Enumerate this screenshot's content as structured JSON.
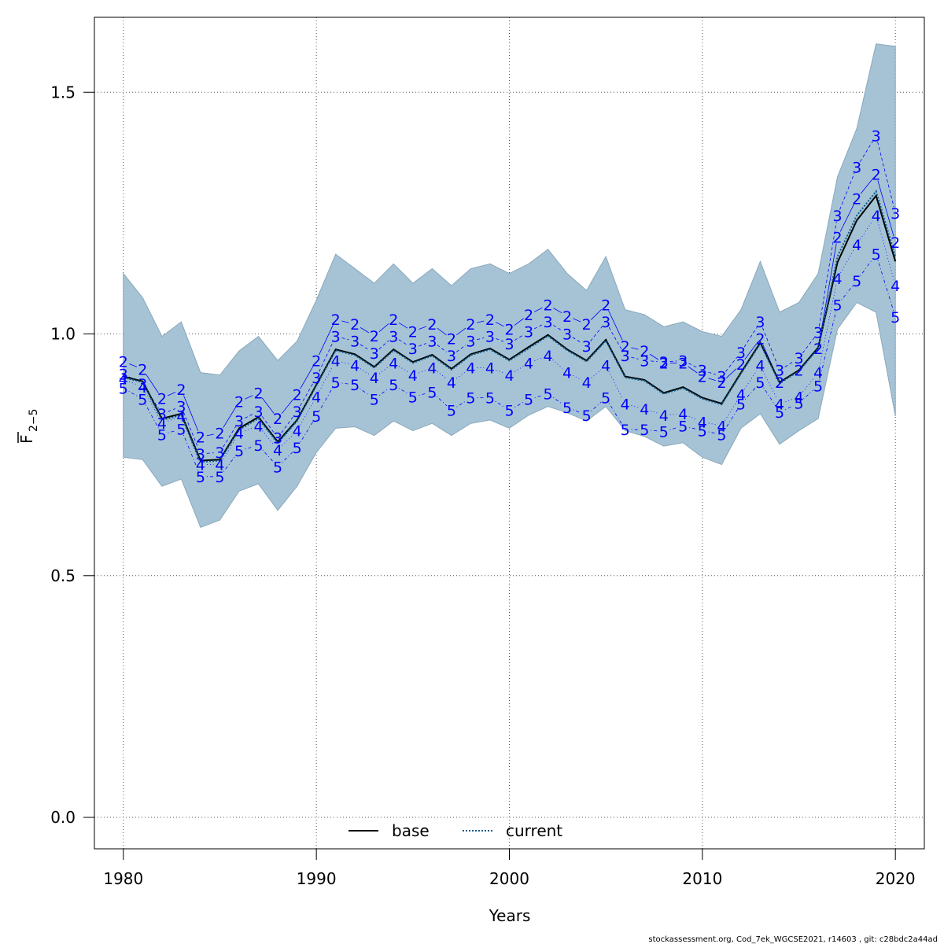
{
  "chart_data": {
    "type": "line",
    "title": "",
    "xlabel": "Years",
    "ylabel": "F",
    "ylabel_subscript": "2−5",
    "xlim": [
      1978.5,
      2021.5
    ],
    "ylim": [
      -0.065,
      1.655
    ],
    "xticks": [
      1980,
      1990,
      2000,
      2010,
      2020
    ],
    "yticks": [
      0.0,
      0.5,
      1.0,
      1.5
    ],
    "ytick_labels": [
      "0.0",
      "0.5",
      "1.0",
      "1.5"
    ],
    "grid": true,
    "colors": {
      "band": "#a5c3d5",
      "band_edge": "#8aa8bb",
      "age_lines": "#0000ff",
      "base": "#000000",
      "current": "#0b5a8a"
    },
    "years": [
      1980,
      1981,
      1982,
      1983,
      1984,
      1985,
      1986,
      1987,
      1988,
      1989,
      1990,
      1991,
      1992,
      1993,
      1994,
      1995,
      1996,
      1997,
      1998,
      1999,
      2000,
      2001,
      2002,
      2003,
      2004,
      2005,
      2006,
      2007,
      2008,
      2009,
      2010,
      2011,
      2012,
      2013,
      2014,
      2015,
      2016,
      2017,
      2018,
      2019,
      2020
    ],
    "band_upper": [
      1.125,
      1.075,
      0.995,
      1.025,
      0.92,
      0.915,
      0.965,
      0.995,
      0.945,
      0.985,
      1.07,
      1.165,
      1.135,
      1.105,
      1.145,
      1.105,
      1.135,
      1.1,
      1.135,
      1.145,
      1.125,
      1.145,
      1.175,
      1.125,
      1.09,
      1.16,
      1.05,
      1.04,
      1.015,
      1.025,
      1.005,
      0.995,
      1.05,
      1.15,
      1.045,
      1.065,
      1.125,
      1.325,
      1.425,
      1.6,
      1.595
    ],
    "band_lower": [
      0.745,
      0.74,
      0.685,
      0.7,
      0.6,
      0.615,
      0.675,
      0.69,
      0.635,
      0.685,
      0.755,
      0.805,
      0.808,
      0.79,
      0.82,
      0.8,
      0.815,
      0.79,
      0.815,
      0.822,
      0.805,
      0.832,
      0.85,
      0.837,
      0.82,
      0.85,
      0.8,
      0.788,
      0.768,
      0.775,
      0.745,
      0.73,
      0.805,
      0.835,
      0.772,
      0.8,
      0.825,
      1.01,
      1.065,
      1.045,
      0.83
    ],
    "series": [
      {
        "name": "base",
        "style": "solid",
        "values": [
          0.912,
          0.902,
          0.825,
          0.835,
          0.738,
          0.74,
          0.805,
          0.828,
          0.777,
          0.822,
          0.895,
          0.968,
          0.958,
          0.932,
          0.968,
          0.942,
          0.957,
          0.928,
          0.958,
          0.97,
          0.947,
          0.973,
          0.998,
          0.968,
          0.945,
          0.988,
          0.912,
          0.905,
          0.878,
          0.89,
          0.868,
          0.856,
          0.92,
          0.982,
          0.9,
          0.925,
          0.972,
          1.148,
          1.235,
          1.286,
          1.15
        ]
      },
      {
        "name": "current",
        "style": "dotted",
        "values": [
          0.91,
          0.9,
          0.822,
          0.832,
          0.735,
          0.738,
          0.802,
          0.825,
          0.774,
          0.82,
          0.893,
          0.966,
          0.956,
          0.93,
          0.966,
          0.94,
          0.955,
          0.926,
          0.956,
          0.968,
          0.945,
          0.97,
          0.996,
          0.966,
          0.943,
          0.986,
          0.91,
          0.903,
          0.876,
          0.888,
          0.866,
          0.854,
          0.918,
          0.98,
          0.898,
          0.923,
          0.97,
          1.16,
          1.245,
          1.295,
          1.16
        ]
      }
    ],
    "age_series": [
      {
        "age": "2",
        "values": [
          0.943,
          0.927,
          0.867,
          0.885,
          0.787,
          0.795,
          0.86,
          0.878,
          0.825,
          0.875,
          0.945,
          1.03,
          1.02,
          0.996,
          1.03,
          1.005,
          1.02,
          0.99,
          1.02,
          1.03,
          1.01,
          1.04,
          1.06,
          1.037,
          1.02,
          1.06,
          0.975,
          0.965,
          0.94,
          0.94,
          0.912,
          0.9,
          0.937,
          0.99,
          0.9,
          0.925,
          0.97,
          1.2,
          1.28,
          1.33,
          1.19
        ]
      },
      {
        "age": "3",
        "values": [
          0.917,
          0.897,
          0.835,
          0.85,
          0.752,
          0.755,
          0.82,
          0.84,
          0.785,
          0.84,
          0.91,
          0.995,
          0.985,
          0.96,
          0.995,
          0.97,
          0.985,
          0.955,
          0.985,
          0.995,
          0.98,
          1.005,
          1.025,
          1.0,
          0.975,
          1.025,
          0.955,
          0.945,
          0.942,
          0.945,
          0.925,
          0.912,
          0.962,
          1.025,
          0.925,
          0.95,
          1.003,
          1.245,
          1.345,
          1.41,
          1.25
        ]
      },
      {
        "age": "4",
        "values": [
          0.907,
          0.89,
          0.815,
          0.83,
          0.73,
          0.73,
          0.795,
          0.81,
          0.76,
          0.8,
          0.87,
          0.945,
          0.935,
          0.91,
          0.94,
          0.915,
          0.93,
          0.9,
          0.93,
          0.93,
          0.915,
          0.94,
          0.955,
          0.92,
          0.9,
          0.935,
          0.855,
          0.845,
          0.832,
          0.835,
          0.818,
          0.81,
          0.875,
          0.935,
          0.855,
          0.87,
          0.92,
          1.115,
          1.185,
          1.245,
          1.1
        ]
      },
      {
        "age": "5",
        "values": [
          0.888,
          0.865,
          0.792,
          0.803,
          0.705,
          0.705,
          0.758,
          0.77,
          0.725,
          0.765,
          0.83,
          0.9,
          0.895,
          0.865,
          0.895,
          0.87,
          0.88,
          0.842,
          0.868,
          0.868,
          0.842,
          0.865,
          0.876,
          0.848,
          0.832,
          0.868,
          0.802,
          0.802,
          0.798,
          0.81,
          0.8,
          0.792,
          0.855,
          0.9,
          0.838,
          0.857,
          0.893,
          1.06,
          1.11,
          1.165,
          1.035
        ]
      }
    ],
    "legend": {
      "placement": "bottom-center",
      "entries": [
        "base",
        "current"
      ]
    }
  },
  "footer_text": "stockassessment.org, Cod_7ek_WGCSE2021, r14603 , git: c28bdc2a44ad"
}
